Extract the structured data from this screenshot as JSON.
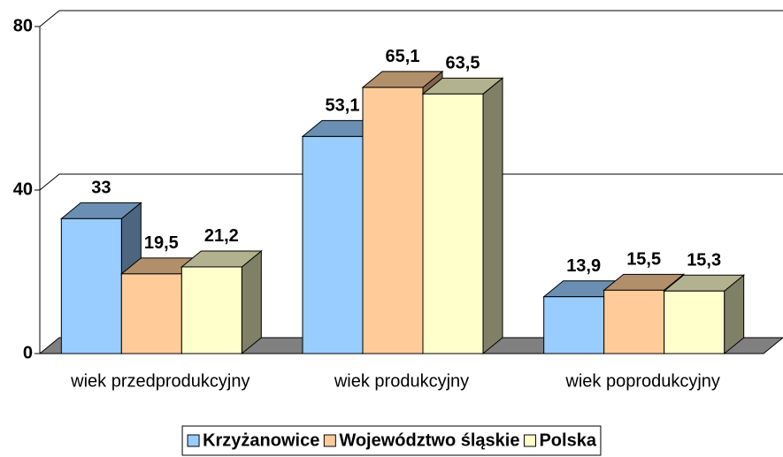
{
  "chart_data": {
    "type": "bar3d",
    "categories": [
      "wiek przedprodukcyjny",
      "wiek produkcyjny",
      "wiek poprodukcyjny"
    ],
    "series": [
      {
        "name": "Krzyżanowice",
        "color": "#99ccff",
        "values": [
          33,
          53.1,
          13.9
        ],
        "value_labels": [
          "33",
          "53,1",
          "13,9"
        ]
      },
      {
        "name": "Województwo śląskie",
        "color": "#ffcc99",
        "values": [
          19.5,
          65.1,
          15.5
        ],
        "value_labels": [
          "19,5",
          "65,1",
          "15,5"
        ]
      },
      {
        "name": "Polska",
        "color": "#ffffcc",
        "values": [
          21.2,
          63.5,
          15.3
        ],
        "value_labels": [
          "21,2",
          "63,5",
          "15,3"
        ]
      }
    ],
    "ylim": [
      0,
      80
    ],
    "yticks": [
      0,
      40,
      80
    ],
    "grid": true,
    "legend": "bottom"
  }
}
